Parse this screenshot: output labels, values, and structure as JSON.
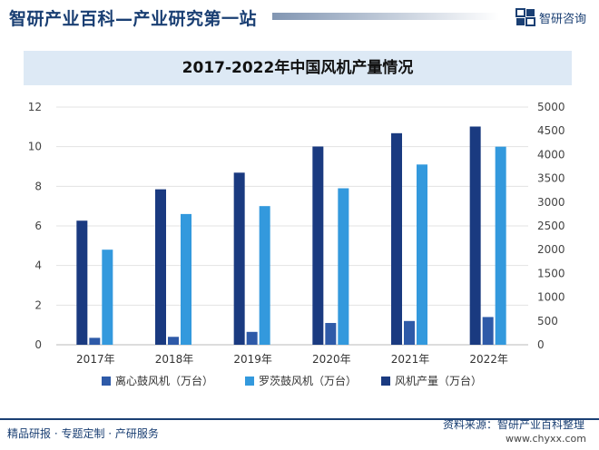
{
  "header": {
    "title": "智研产业百科—产业研究第一站",
    "brand": "智研咨询"
  },
  "footer": {
    "left_text": "精品研报 · 专题定制 · 产研服务",
    "source_label": "资料来源：智研产业百科整理",
    "url": "www.chyxx.com"
  },
  "colors": {
    "brand": "#1a3f73",
    "series1": "#2e5aa8",
    "series2": "#3399dd",
    "series3": "#1a3a80",
    "title_band": "#dde9f5"
  },
  "chart_data": {
    "type": "bar",
    "title": "2017-2022年中国风机产量情况",
    "categories": [
      "2017年",
      "2018年",
      "2019年",
      "2020年",
      "2021年",
      "2022年"
    ],
    "series": [
      {
        "name": "离心鼓风机（万台）",
        "axis": "left",
        "values": [
          0.35,
          0.4,
          0.65,
          1.1,
          1.2,
          1.4
        ]
      },
      {
        "name": "罗茨鼓风机（万台）",
        "axis": "left",
        "values": [
          4.8,
          6.6,
          7.0,
          7.9,
          9.1,
          10.0
        ]
      },
      {
        "name": "风机产量（万台）",
        "axis": "right",
        "values": [
          2610,
          3270,
          3620,
          4170,
          4450,
          4590
        ]
      }
    ],
    "y_left": {
      "ylim": [
        0,
        12
      ],
      "ticks": [
        0,
        2,
        4,
        6,
        8,
        10,
        12
      ]
    },
    "y_right": {
      "ylim": [
        0,
        5000
      ],
      "ticks": [
        0,
        500,
        1000,
        1500,
        2000,
        2500,
        3000,
        3500,
        4000,
        4500,
        5000
      ]
    },
    "grid": true,
    "legend_position": "bottom"
  }
}
